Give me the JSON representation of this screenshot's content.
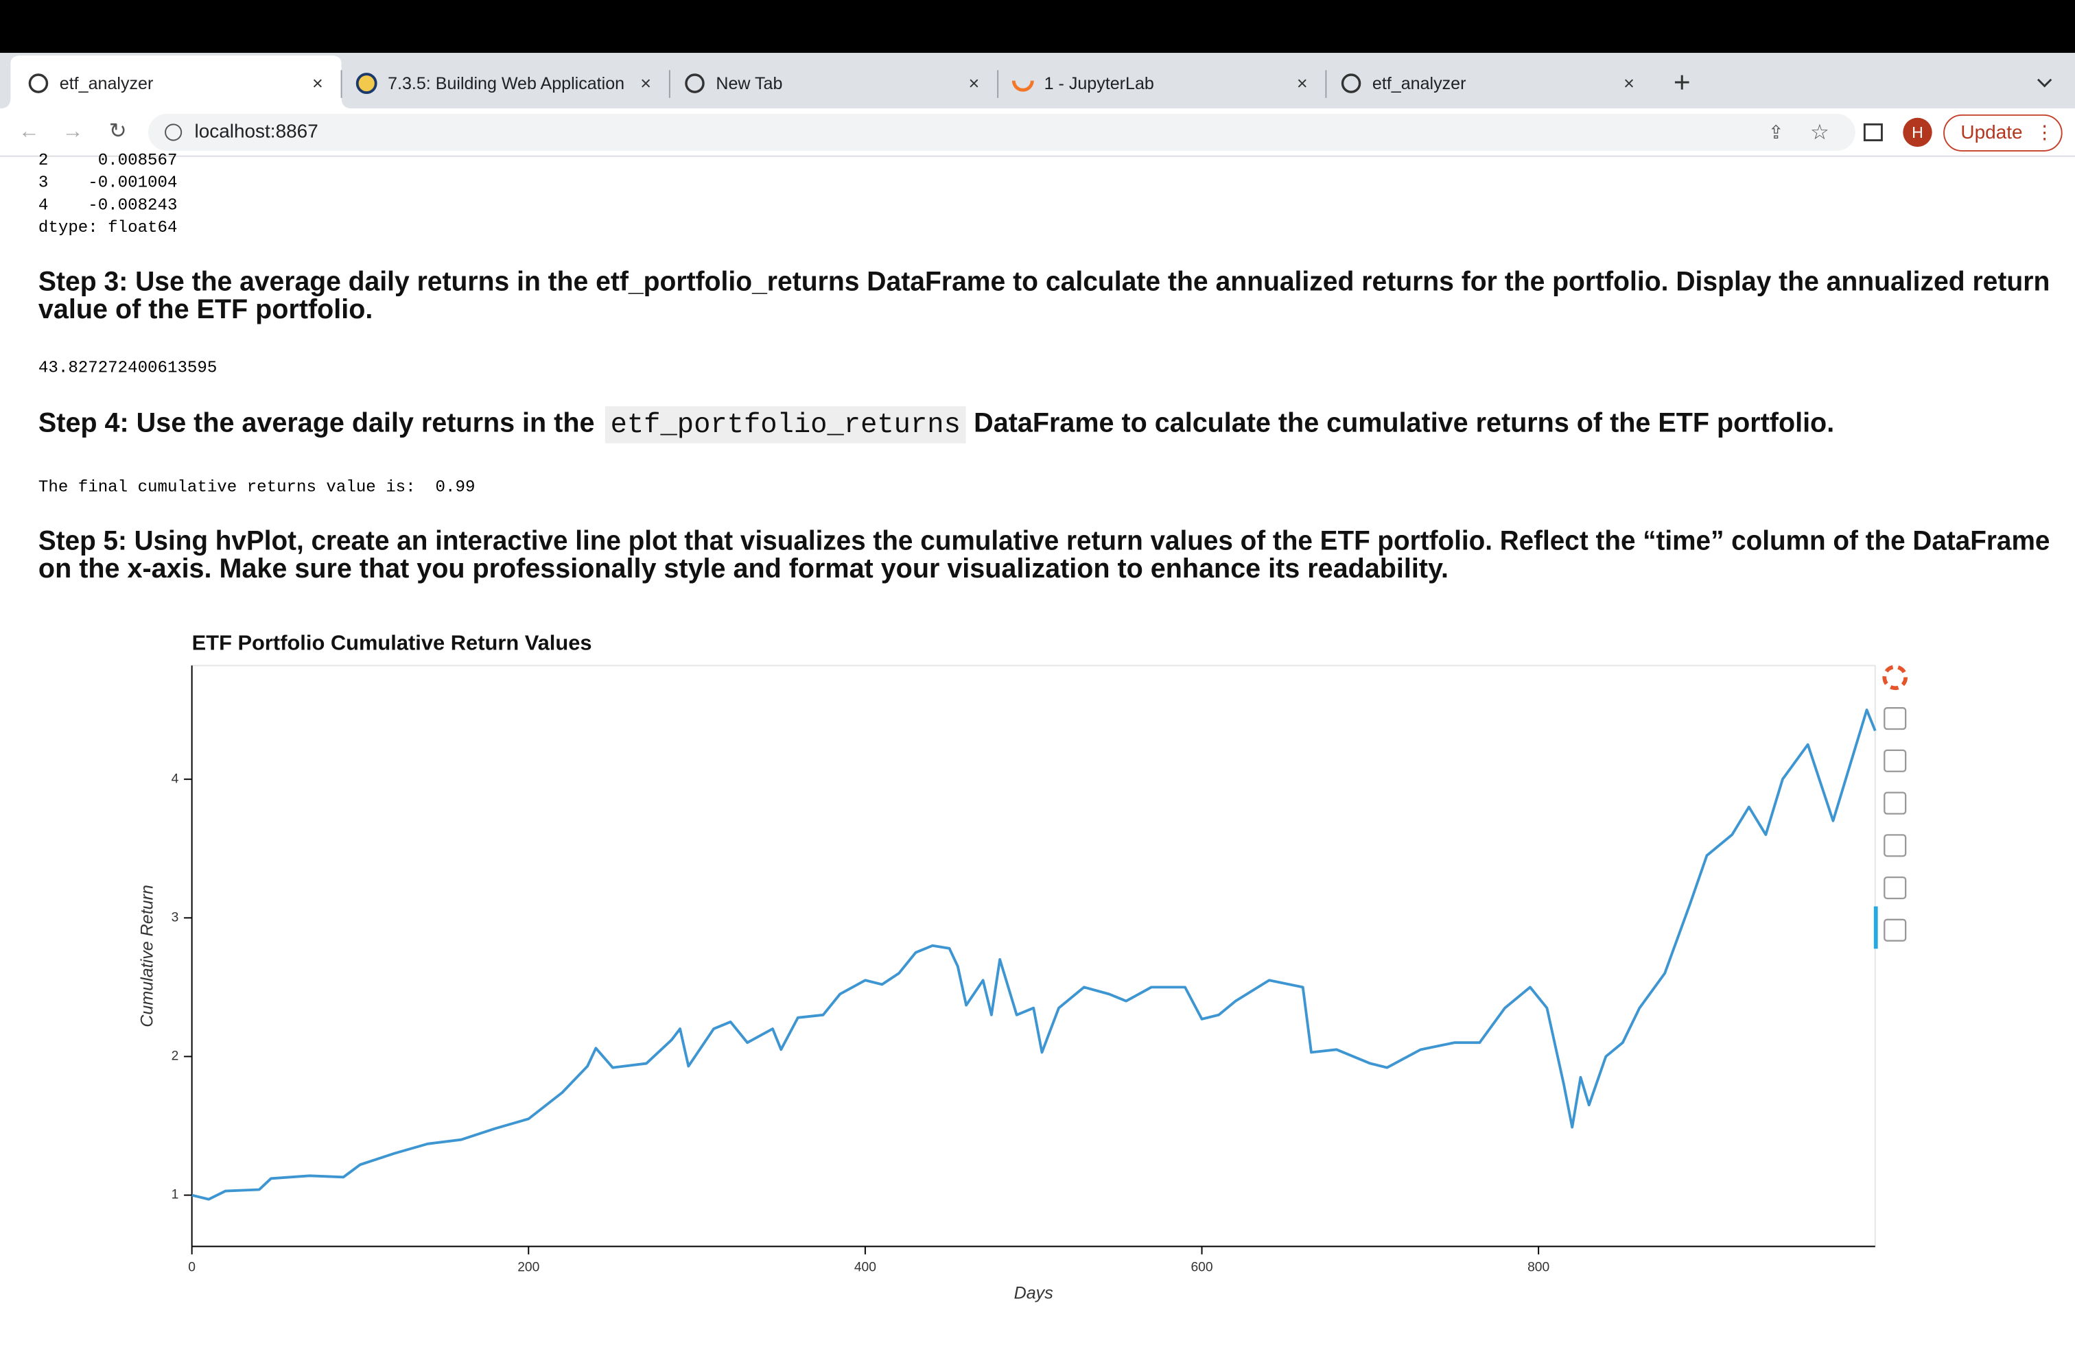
{
  "tabs": [
    "etf_analyzer",
    "7.3.5: Building Web Application",
    "New Tab",
    "1 - JupyterLab",
    "etf_analyzer"
  ],
  "address": "localhost:8867",
  "profile": "H",
  "update_button": "Update",
  "output_series": [
    "2     0.008567",
    "3    -0.001004",
    "4    -0.008243",
    "dtype: float64"
  ],
  "step3": [
    "Step 3: Use the average daily returns in the etf_portfolio_returns DataFrame to calculate the annualized returns for the portfolio. Display the annualized return",
    "value of the ETF portfolio."
  ],
  "step3_output": "43.827272400613595",
  "step4": [
    "Step 4: Use the average daily returns in the",
    "etf_portfolio_returns",
    "DataFrame to calculate the cumulative returns of the ETF portfolio."
  ],
  "step4_output": "The final cumulative returns value is:  0.99",
  "step5": [
    "Step 5: Using hvPlot, create an interactive line plot that visualizes the cumulative return values of the ETF portfolio. Reflect the “time” column of the DataFrame",
    "on the x-axis. Make sure that you professionally style and format your visualization to enhance its readability."
  ],
  "chart_data": {
    "type": "line",
    "title": "ETF Portfolio Cumulative Return Values",
    "x_label": "Days",
    "y_label": "Cumulative Return",
    "color": "#3d95d1",
    "xlim": [
      0,
      1000
    ],
    "ylim": [
      0.63,
      4.82
    ],
    "xticks": [
      0,
      200,
      400,
      600,
      800
    ],
    "yticks": [
      1,
      2,
      3,
      4
    ],
    "x": [
      0,
      10,
      20,
      40,
      47,
      70,
      90,
      100,
      120,
      140,
      160,
      180,
      200,
      220,
      235,
      240,
      250,
      270,
      285,
      290,
      295,
      310,
      320,
      330,
      345,
      350,
      360,
      375,
      385,
      400,
      410,
      420,
      430,
      440,
      450,
      455,
      460,
      470,
      475,
      480,
      490,
      500,
      505,
      515,
      530,
      545,
      555,
      570,
      590,
      600,
      610,
      620,
      640,
      660,
      665,
      680,
      700,
      710,
      730,
      750,
      765,
      780,
      795,
      805,
      815,
      820,
      825,
      830,
      840,
      850,
      860,
      875,
      890,
      900,
      915,
      925,
      935,
      945,
      960,
      975,
      985,
      995,
      1000
    ],
    "values": [
      1.0,
      0.97,
      1.03,
      1.04,
      1.12,
      1.14,
      1.13,
      1.22,
      1.3,
      1.37,
      1.4,
      1.48,
      1.55,
      1.74,
      1.93,
      2.06,
      1.92,
      1.95,
      2.12,
      2.2,
      1.93,
      2.2,
      2.25,
      2.1,
      2.2,
      2.05,
      2.28,
      2.3,
      2.45,
      2.55,
      2.52,
      2.6,
      2.75,
      2.8,
      2.78,
      2.65,
      2.37,
      2.55,
      2.3,
      2.7,
      2.3,
      2.35,
      2.03,
      2.35,
      2.5,
      2.45,
      2.4,
      2.5,
      2.5,
      2.27,
      2.3,
      2.4,
      2.55,
      2.5,
      2.03,
      2.05,
      1.95,
      1.92,
      2.05,
      2.1,
      2.1,
      2.35,
      2.5,
      2.35,
      1.8,
      1.49,
      1.85,
      1.65,
      2.0,
      2.1,
      2.35,
      2.6,
      3.1,
      3.45,
      3.6,
      3.8,
      3.6,
      4.0,
      4.25,
      3.7,
      4.1,
      4.5,
      4.35
    ]
  }
}
